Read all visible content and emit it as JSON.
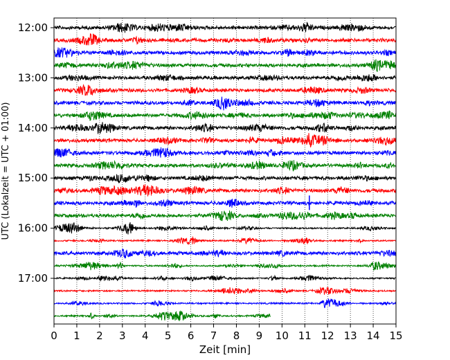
{
  "chart_data": {
    "type": "line",
    "title": "",
    "xlabel": "Zeit  [min]",
    "ylabel": "UTC (Lokalzeit = UTC + 01:00)",
    "xlim": [
      0,
      15
    ],
    "x_ticks": [
      "0",
      "1",
      "2",
      "3",
      "4",
      "5",
      "6",
      "7",
      "8",
      "9",
      "10",
      "11",
      "12",
      "13",
      "14",
      "15"
    ],
    "y_ticks": [
      "12:00",
      "13:00",
      "14:00",
      "15:00",
      "16:00",
      "17:00"
    ],
    "grid": {
      "x": true,
      "y": false
    },
    "line_color_cycle": [
      "#000000",
      "#ff0000",
      "#0000ff",
      "#008000"
    ],
    "rows": [
      {
        "start": "12:00",
        "color": "#000000",
        "end_min": 15,
        "amplitude": "medium"
      },
      {
        "start": "12:15",
        "color": "#ff0000",
        "end_min": 15,
        "amplitude": "medium"
      },
      {
        "start": "12:30",
        "color": "#0000ff",
        "end_min": 15,
        "amplitude": "medium"
      },
      {
        "start": "12:45",
        "color": "#008000",
        "end_min": 15,
        "amplitude": "medium"
      },
      {
        "start": "13:00",
        "color": "#000000",
        "end_min": 15,
        "amplitude": "medium"
      },
      {
        "start": "13:15",
        "color": "#ff0000",
        "end_min": 15,
        "amplitude": "medium"
      },
      {
        "start": "13:30",
        "color": "#0000ff",
        "end_min": 15,
        "amplitude": "medium"
      },
      {
        "start": "13:45",
        "color": "#008000",
        "end_min": 15,
        "amplitude": "medium"
      },
      {
        "start": "14:00",
        "color": "#000000",
        "end_min": 15,
        "amplitude": "medium"
      },
      {
        "start": "14:15",
        "color": "#ff0000",
        "end_min": 15,
        "amplitude": "medium"
      },
      {
        "start": "14:30",
        "color": "#0000ff",
        "end_min": 15,
        "amplitude": "medium"
      },
      {
        "start": "14:45",
        "color": "#008000",
        "end_min": 15,
        "amplitude": "medium"
      },
      {
        "start": "15:00",
        "color": "#000000",
        "end_min": 15,
        "amplitude": "medium"
      },
      {
        "start": "15:15",
        "color": "#ff0000",
        "end_min": 15,
        "amplitude": "medium"
      },
      {
        "start": "15:30",
        "color": "#0000ff",
        "end_min": 15,
        "amplitude": "medium",
        "spike_min": 11.2
      },
      {
        "start": "15:45",
        "color": "#008000",
        "end_min": 15,
        "amplitude": "medium"
      },
      {
        "start": "16:00",
        "color": "#000000",
        "end_min": 15,
        "amplitude": "low"
      },
      {
        "start": "16:15",
        "color": "#ff0000",
        "end_min": 15,
        "amplitude": "low"
      },
      {
        "start": "16:30",
        "color": "#0000ff",
        "end_min": 15,
        "amplitude": "medium"
      },
      {
        "start": "16:45",
        "color": "#008000",
        "end_min": 15,
        "amplitude": "low"
      },
      {
        "start": "17:00",
        "color": "#000000",
        "end_min": 15,
        "amplitude": "low"
      },
      {
        "start": "17:15",
        "color": "#ff0000",
        "end_min": 15,
        "amplitude": "low"
      },
      {
        "start": "17:30",
        "color": "#0000ff",
        "end_min": 15,
        "amplitude": "low"
      },
      {
        "start": "17:45",
        "color": "#008000",
        "end_min": 9.5,
        "amplitude": "low"
      }
    ]
  }
}
